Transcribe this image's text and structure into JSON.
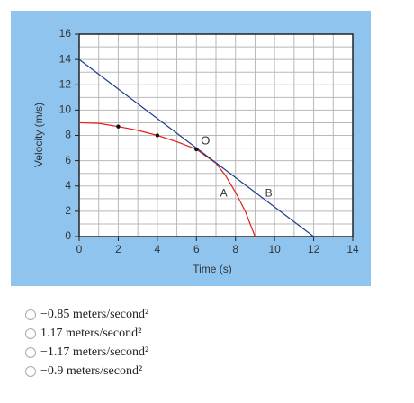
{
  "chart_data": {
    "type": "line",
    "xlabel": "Time (s)",
    "ylabel": "Velocity (m/s)",
    "xlim": [
      0,
      14
    ],
    "ylim": [
      0,
      16
    ],
    "xticks": [
      0,
      2,
      4,
      6,
      8,
      10,
      12,
      14
    ],
    "yticks": [
      0,
      2,
      4,
      6,
      8,
      10,
      12,
      14,
      16
    ],
    "xminorticks": [
      1,
      3,
      5,
      7,
      9,
      11,
      13
    ],
    "yminorticks": [
      1,
      3,
      5,
      7,
      9,
      11,
      13,
      15
    ],
    "grid": true,
    "series": [
      {
        "name": "A",
        "color": "#e0201c",
        "x": [
          0,
          1,
          2,
          3,
          4,
          5,
          6,
          7,
          7.5,
          8,
          8.5,
          9
        ],
        "values": [
          9,
          8.95,
          8.7,
          8.4,
          8,
          7.5,
          6.9,
          5.8,
          4.8,
          3.5,
          2,
          0
        ]
      },
      {
        "name": "B",
        "color": "#1b3b8c",
        "x": [
          0,
          12
        ],
        "values": [
          14,
          0
        ]
      },
      {
        "color": "#111111",
        "x": [
          2,
          4,
          6
        ],
        "values": [
          8.7,
          8,
          6.9
        ]
      }
    ],
    "annotations": [
      "O"
    ]
  },
  "options": [
    "−0.85 meters/second²",
    "1.17 meters/second²",
    "−1.17 meters/second²",
    "−0.9 meters/second²"
  ]
}
